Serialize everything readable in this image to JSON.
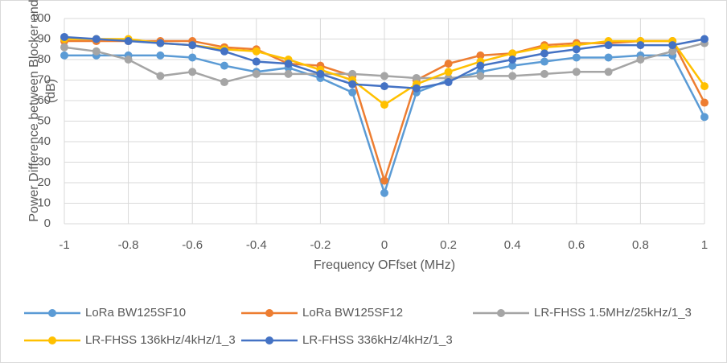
{
  "chart_data": {
    "type": "line",
    "x_label": "Frequency OFfset (MHz)",
    "y_label": "Power Difference  between Blocker and Signal (dB)",
    "x": [
      -1,
      -0.9,
      -0.8,
      -0.7,
      -0.6,
      -0.5,
      -0.4,
      -0.3,
      -0.2,
      -0.1,
      0,
      0.1,
      0.2,
      0.3,
      0.4,
      0.5,
      0.6,
      0.7,
      0.8,
      0.9,
      1
    ],
    "xlim": [
      -1,
      1
    ],
    "xticks": [
      -1,
      -0.8,
      -0.6,
      -0.4,
      -0.2,
      0,
      0.2,
      0.4,
      0.6,
      0.8,
      1
    ],
    "ylim": [
      0,
      100
    ],
    "yticks": [
      0,
      10,
      20,
      30,
      40,
      50,
      60,
      70,
      80,
      90,
      100
    ],
    "grid": true,
    "legend": "bottom",
    "series": [
      {
        "name": "LoRa BW125SF10",
        "color": "#5b9bd5",
        "values": [
          82,
          82,
          82,
          82,
          81,
          77,
          74,
          76,
          71,
          64,
          15,
          64,
          70,
          74,
          77,
          79,
          81,
          81,
          82,
          82,
          52
        ]
      },
      {
        "name": "LoRa BW125SF12",
        "color": "#ed7d31",
        "values": [
          89,
          89,
          89,
          89,
          89,
          86,
          85,
          78,
          77,
          72,
          21,
          70,
          78,
          82,
          83,
          87,
          88,
          88,
          89,
          89,
          59
        ]
      },
      {
        "name": "LR-FHSS 1.5MHz/25kHz/1_3",
        "color": "#a5a5a5",
        "values": [
          86,
          84,
          80,
          72,
          74,
          69,
          73,
          73,
          73,
          73,
          72,
          71,
          71,
          72,
          72,
          73,
          74,
          74,
          80,
          84,
          88
        ]
      },
      {
        "name": "LR-FHSS 136kHz/4kHz/1_3",
        "color": "#ffc000",
        "values": [
          90,
          90,
          90,
          88,
          87,
          85,
          84,
          80,
          75,
          70,
          58,
          68,
          74,
          79,
          83,
          86,
          87,
          89,
          89,
          89,
          67
        ]
      },
      {
        "name": "LR-FHSS 336kHz/4kHz/1_3",
        "color": "#4472c4",
        "values": [
          91,
          90,
          89,
          88,
          87,
          84,
          79,
          78,
          73,
          68,
          67,
          66,
          69,
          77,
          80,
          83,
          85,
          87,
          87,
          87,
          90
        ]
      }
    ]
  }
}
